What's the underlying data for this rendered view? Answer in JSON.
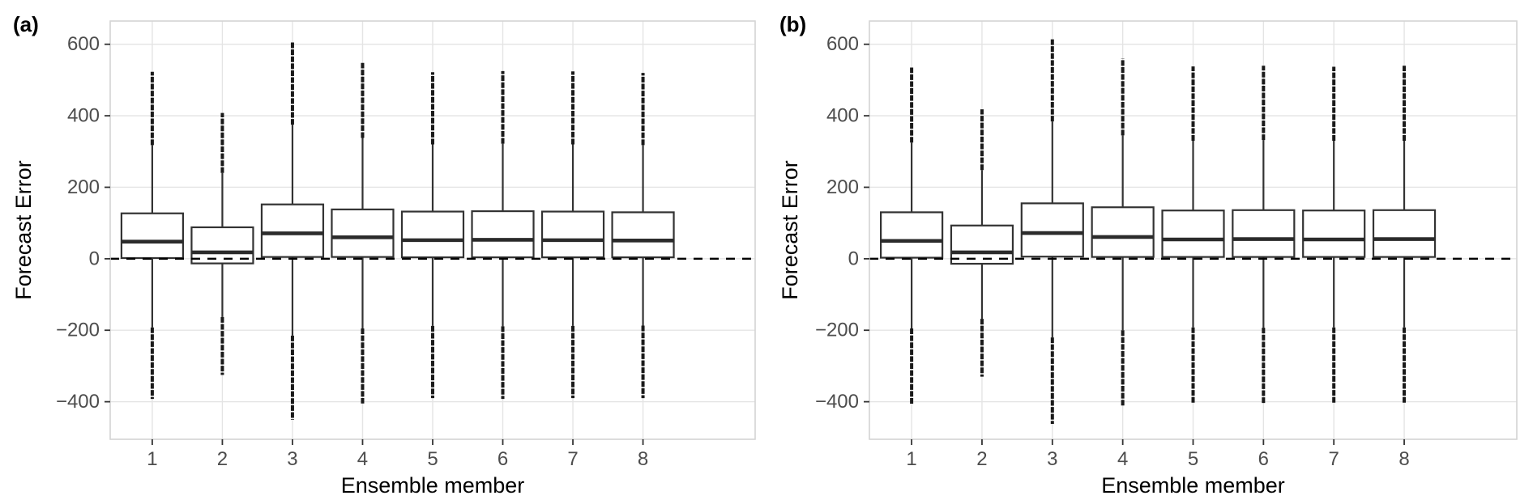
{
  "figure": {
    "description": "Two-panel boxplot figure of forecast error by ensemble member",
    "colors": {
      "background": "#ffffff",
      "box_stroke": "#333333",
      "median_stroke": "#2b2b2b",
      "whisker_stroke": "#333333",
      "outlier_stroke": "#1a1a1a",
      "grid_line": "#e4e4e4",
      "panel_border": "#d4d4d4",
      "axis_tick": "#333333",
      "tick_label": "#4d4d4d",
      "axis_title": "#000000",
      "reference_line": "#000000"
    }
  },
  "chart_data": [
    {
      "type": "boxplot",
      "panel_label": "(a)",
      "xlabel": "Ensemble member",
      "ylabel": "Forecast Error",
      "categories": [
        "1",
        "2",
        "3",
        "4",
        "5",
        "6",
        "7",
        "8"
      ],
      "ylim": [
        -505,
        665
      ],
      "y_ticks": [
        {
          "value": 600,
          "label": "600"
        },
        {
          "value": 400,
          "label": "400"
        },
        {
          "value": 200,
          "label": "200"
        },
        {
          "value": 0,
          "label": "0"
        },
        {
          "value": -200,
          "label": "−200"
        },
        {
          "value": -400,
          "label": "−400"
        }
      ],
      "grid": "major horizontal lines every 200; one vertical line per category",
      "legend": "none",
      "reference_line": {
        "value": 0,
        "style": "dashed",
        "color": "#000000"
      },
      "boxes": [
        {
          "member": "1",
          "q1": 2,
          "median": 48,
          "q3": 127,
          "whisker_low": -192,
          "whisker_high": 318,
          "outliers_to_low": -392,
          "outliers_to_high": 523
        },
        {
          "member": "2",
          "q1": -13,
          "median": 18,
          "q3": 88,
          "whisker_low": -163,
          "whisker_high": 240,
          "outliers_to_low": -325,
          "outliers_to_high": 408
        },
        {
          "member": "3",
          "q1": 5,
          "median": 71,
          "q3": 152,
          "whisker_low": -215,
          "whisker_high": 375,
          "outliers_to_low": -450,
          "outliers_to_high": 607
        },
        {
          "member": "4",
          "q1": 5,
          "median": 60,
          "q3": 138,
          "whisker_low": -195,
          "whisker_high": 338,
          "outliers_to_low": -405,
          "outliers_to_high": 548
        },
        {
          "member": "5",
          "q1": 4,
          "median": 52,
          "q3": 132,
          "whisker_low": -188,
          "whisker_high": 320,
          "outliers_to_low": -390,
          "outliers_to_high": 522
        },
        {
          "member": "6",
          "q1": 4,
          "median": 53,
          "q3": 133,
          "whisker_low": -189,
          "whisker_high": 322,
          "outliers_to_low": -392,
          "outliers_to_high": 525
        },
        {
          "member": "7",
          "q1": 4,
          "median": 52,
          "q3": 132,
          "whisker_low": -188,
          "whisker_high": 320,
          "outliers_to_low": -390,
          "outliers_to_high": 524
        },
        {
          "member": "8",
          "q1": 4,
          "median": 51,
          "q3": 130,
          "whisker_low": -187,
          "whisker_high": 318,
          "outliers_to_low": -390,
          "outliers_to_high": 520
        }
      ]
    },
    {
      "type": "boxplot",
      "panel_label": "(b)",
      "xlabel": "Ensemble member",
      "ylabel": "Forecast Error",
      "categories": [
        "1",
        "2",
        "3",
        "4",
        "5",
        "6",
        "7",
        "8"
      ],
      "ylim": [
        -505,
        665
      ],
      "y_ticks": [
        {
          "value": 600,
          "label": "600"
        },
        {
          "value": 400,
          "label": "400"
        },
        {
          "value": 200,
          "label": "200"
        },
        {
          "value": 0,
          "label": "0"
        },
        {
          "value": -200,
          "label": "−200"
        },
        {
          "value": -400,
          "label": "−400"
        }
      ],
      "grid": "major horizontal lines every 200; one vertical line per category",
      "legend": "none",
      "reference_line": {
        "value": 0,
        "style": "dashed",
        "color": "#000000"
      },
      "boxes": [
        {
          "member": "1",
          "q1": 3,
          "median": 50,
          "q3": 130,
          "whisker_low": -195,
          "whisker_high": 325,
          "outliers_to_low": -408,
          "outliers_to_high": 535
        },
        {
          "member": "2",
          "q1": -14,
          "median": 18,
          "q3": 93,
          "whisker_low": -168,
          "whisker_high": 248,
          "outliers_to_low": -330,
          "outliers_to_high": 418
        },
        {
          "member": "3",
          "q1": 6,
          "median": 72,
          "q3": 155,
          "whisker_low": -220,
          "whisker_high": 384,
          "outliers_to_low": -462,
          "outliers_to_high": 615
        },
        {
          "member": "4",
          "q1": 5,
          "median": 61,
          "q3": 144,
          "whisker_low": -200,
          "whisker_high": 345,
          "outliers_to_low": -412,
          "outliers_to_high": 560
        },
        {
          "member": "5",
          "q1": 5,
          "median": 54,
          "q3": 135,
          "whisker_low": -192,
          "whisker_high": 330,
          "outliers_to_low": -405,
          "outliers_to_high": 538
        },
        {
          "member": "6",
          "q1": 5,
          "median": 55,
          "q3": 136,
          "whisker_low": -193,
          "whisker_high": 332,
          "outliers_to_low": -405,
          "outliers_to_high": 540
        },
        {
          "member": "7",
          "q1": 5,
          "median": 54,
          "q3": 135,
          "whisker_low": -192,
          "whisker_high": 330,
          "outliers_to_low": -405,
          "outliers_to_high": 537
        },
        {
          "member": "8",
          "q1": 5,
          "median": 55,
          "q3": 136,
          "whisker_low": -192,
          "whisker_high": 330,
          "outliers_to_low": -403,
          "outliers_to_high": 540
        }
      ]
    }
  ]
}
